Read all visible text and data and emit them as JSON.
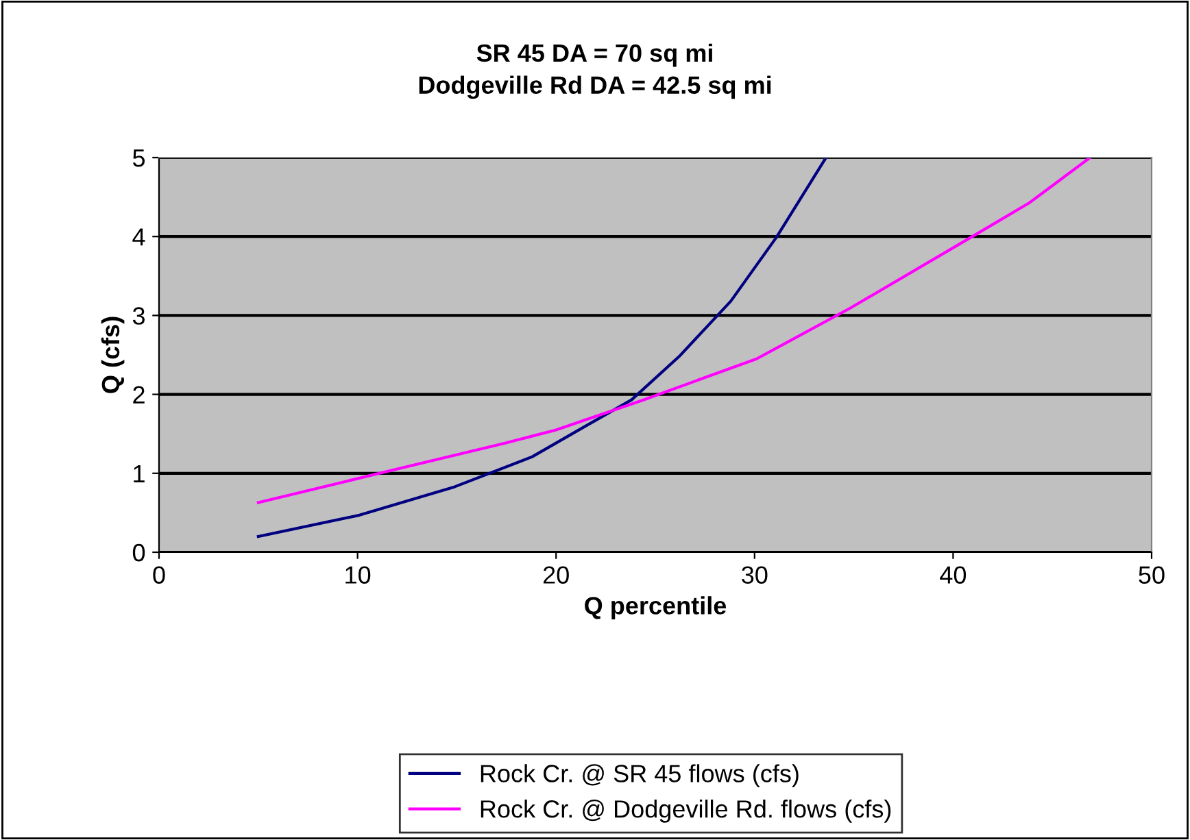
{
  "chart_data": {
    "type": "line",
    "title": "SR 45 DA = 70 sq mi\nDodgeville Rd DA = 42.5 sq mi",
    "xlabel": "Q percentile",
    "ylabel": "Q (cfs)",
    "series": [
      {
        "name": "Rock Cr. @ SR 45 flows (cfs)",
        "color": "#000080",
        "x": [
          5.0,
          10.1,
          14.9,
          18.8,
          21.5,
          23.8,
          26.2,
          28.8,
          31.1,
          33.6
        ],
        "values": [
          0.2,
          0.47,
          0.83,
          1.21,
          1.6,
          1.93,
          2.48,
          3.18,
          3.99,
          5.0
        ]
      },
      {
        "name": "Rock Cr. @ Dodgeville Rd. flows (cfs)",
        "color": "#ff00ff",
        "x": [
          5.0,
          11.1,
          17.4,
          20.0,
          24.4,
          30.1,
          34.8,
          40.9,
          43.8,
          46.9
        ],
        "values": [
          0.63,
          1.0,
          1.38,
          1.55,
          1.93,
          2.45,
          3.09,
          3.99,
          4.42,
          5.0
        ]
      }
    ],
    "xlim": [
      0,
      50
    ],
    "xticks": [
      0,
      10,
      20,
      30,
      40,
      50
    ],
    "ylim": [
      0,
      5
    ],
    "yticks": [
      0,
      1,
      2,
      3,
      4,
      5
    ],
    "grid": "y",
    "legend": "bottom",
    "marker": "none",
    "line_style": "solid"
  }
}
